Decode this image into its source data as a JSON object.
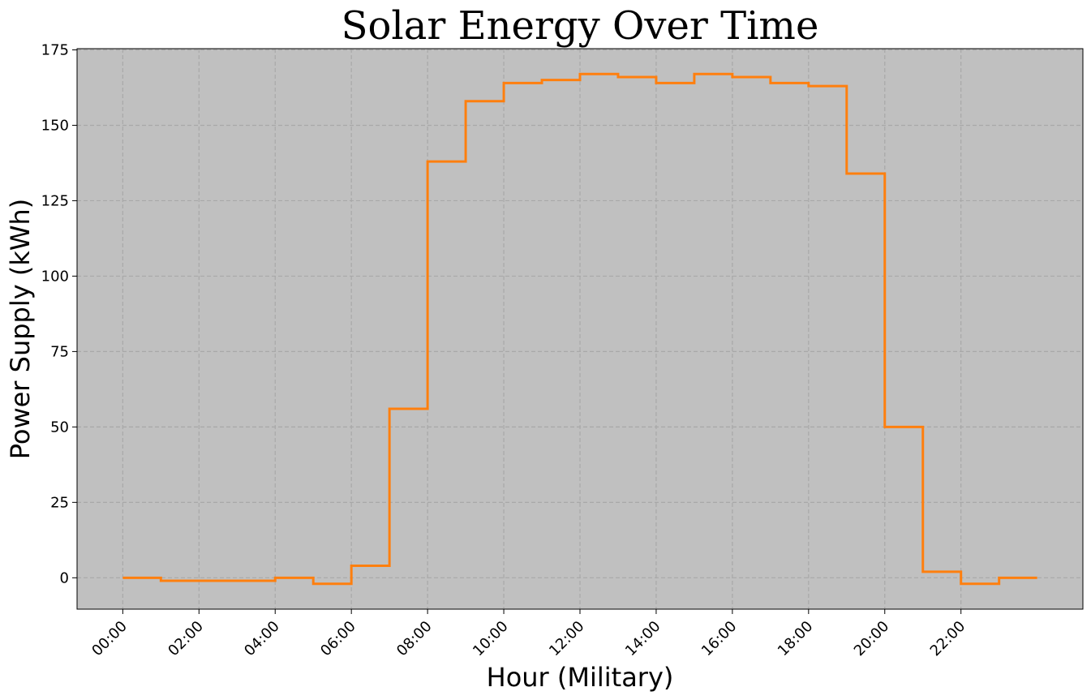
{
  "chart_data": {
    "type": "line",
    "drawstyle": "step-post",
    "title": "Solar Energy Over Time",
    "xlabel": "Hour (Military)",
    "ylabel": "Power Supply (kWh)",
    "x": [
      0,
      1,
      2,
      3,
      4,
      5,
      6,
      7,
      8,
      9,
      10,
      11,
      12,
      13,
      14,
      15,
      16,
      17,
      18,
      19,
      20,
      21,
      22,
      23,
      24
    ],
    "series": [
      {
        "values": [
          0,
          -1,
          -1,
          -1,
          0,
          -2,
          4,
          56,
          138,
          158,
          164,
          165,
          167,
          166,
          164,
          167,
          166,
          164,
          163,
          134,
          50,
          2,
          -2,
          0,
          0
        ],
        "color": "#ff7f0e"
      }
    ],
    "xticks": [
      0,
      2,
      4,
      6,
      8,
      10,
      12,
      14,
      16,
      18,
      20,
      22
    ],
    "xtick_labels": [
      "00:00",
      "02:00",
      "04:00",
      "06:00",
      "08:00",
      "10:00",
      "12:00",
      "14:00",
      "16:00",
      "18:00",
      "20:00",
      "22:00"
    ],
    "yticks": [
      0,
      25,
      50,
      75,
      100,
      125,
      150,
      175
    ],
    "ytick_labels": [
      "0",
      "25",
      "50",
      "75",
      "100",
      "125",
      "150",
      "175"
    ],
    "xlim": [
      -1.2,
      25.2
    ],
    "ylim": [
      -10.4,
      175.4
    ],
    "grid": true,
    "plot_background": "#c0c0c0"
  }
}
